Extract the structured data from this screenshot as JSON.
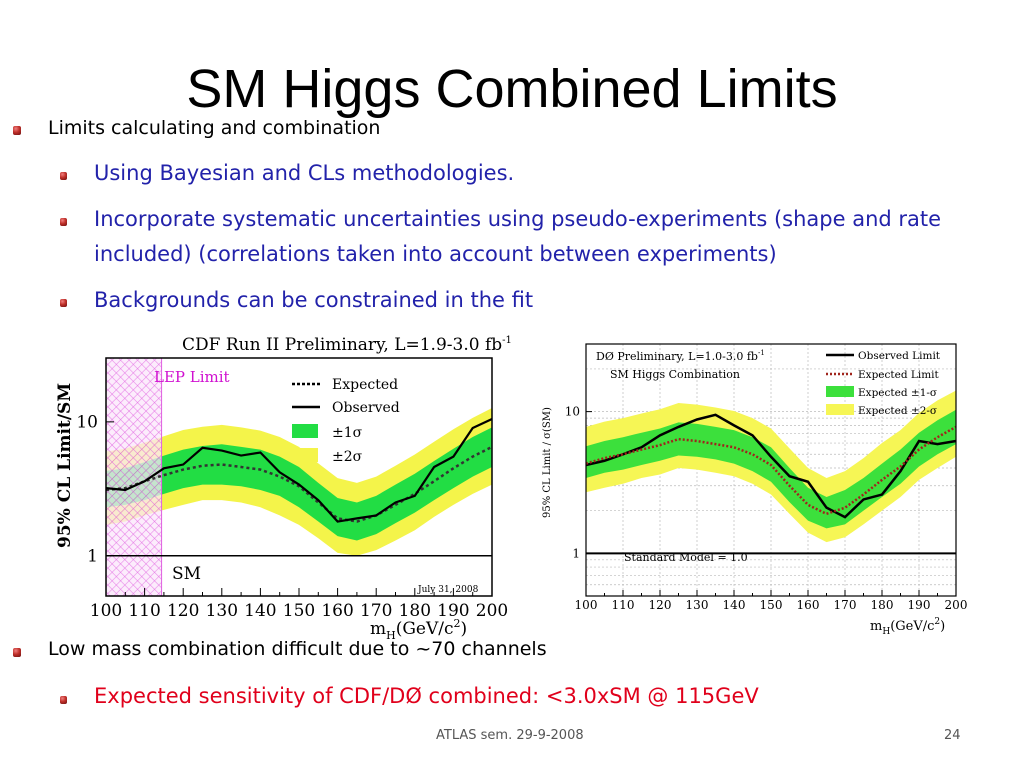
{
  "slide": {
    "title": "SM Higgs Combined Limits",
    "bullets": {
      "b1": "Limits calculating and combination",
      "b1_sub1": "Using Bayesian and CLs methodologies.",
      "b1_sub2_line1": "Incorporate systematic uncertainties using pseudo-experiments (shape and rate",
      "b1_sub2_line2": "included) (correlations taken into account between experiments)",
      "b1_sub3": "Backgrounds can be constrained in the fit",
      "b2": "Low mass combination difficult due to ~70 channels",
      "b2_sub1": "Expected sensitivity of CDF/DØ combined: <3.0xSM @ 115GeV"
    },
    "footer_center": "ATLAS sem. 29-9-2008",
    "page_number": "24"
  },
  "colors": {
    "sub_bullet_blue": "#2222aa",
    "sub_bullet_red": "#e0001b",
    "band_1sigma": "#22dd44",
    "band_2sigma": "#f4f44a",
    "lep_hatch": "#e060e0"
  },
  "chart_data": [
    {
      "type": "line",
      "title": "CDF Run II Preliminary, L=1.9-3.0 fb",
      "title_superscript": "-1",
      "xlabel": "m",
      "xlabel_sub": "H",
      "xlabel_unit": "(GeV/c",
      "xlabel_unit_sup": "2",
      "xlabel_close": ")",
      "ylabel": "95% CL Limit/SM",
      "y_scale": "log",
      "xlim": [
        100,
        200
      ],
      "ylim": [
        0.5,
        30
      ],
      "x_ticks": [
        "100",
        "110",
        "120",
        "130",
        "140",
        "150",
        "160",
        "170",
        "180",
        "190",
        "200"
      ],
      "y_ticks": [
        "1",
        "10"
      ],
      "region_label": "LEP Limit",
      "region_x": [
        100,
        114.4
      ],
      "sm_label": "SM",
      "date_label": "July 31, 2008",
      "legend_position": "top-right",
      "legend": [
        "Expected",
        "Observed",
        "±1σ",
        "±2σ"
      ],
      "x": [
        100,
        105,
        110,
        115,
        120,
        125,
        130,
        135,
        140,
        145,
        150,
        155,
        160,
        165,
        170,
        175,
        180,
        185,
        190,
        195,
        200
      ],
      "series": [
        {
          "name": "Expected",
          "values": [
            3.1,
            3.2,
            3.6,
            4.0,
            4.4,
            4.7,
            4.8,
            4.6,
            4.4,
            3.9,
            3.3,
            2.5,
            1.9,
            1.8,
            2.0,
            2.4,
            2.9,
            3.6,
            4.5,
            5.5,
            6.5
          ]
        },
        {
          "name": "Observed",
          "values": [
            3.2,
            3.1,
            3.6,
            4.5,
            4.8,
            6.4,
            6.1,
            5.6,
            5.9,
            4.2,
            3.4,
            2.6,
            1.8,
            1.9,
            2.0,
            2.5,
            2.8,
            4.6,
            5.5,
            9.0,
            10.5
          ]
        }
      ],
      "band_1sigma": {
        "lower": [
          2.3,
          2.4,
          2.6,
          2.9,
          3.2,
          3.4,
          3.4,
          3.3,
          3.1,
          2.8,
          2.3,
          1.8,
          1.4,
          1.3,
          1.45,
          1.75,
          2.1,
          2.6,
          3.2,
          3.9,
          4.6
        ],
        "upper": [
          4.3,
          4.5,
          5.0,
          5.6,
          6.2,
          6.6,
          6.8,
          6.5,
          6.2,
          5.5,
          4.6,
          3.5,
          2.7,
          2.5,
          2.8,
          3.4,
          4.1,
          5.1,
          6.3,
          7.7,
          9.1
        ]
      },
      "band_2sigma": {
        "lower": [
          1.7,
          1.8,
          2.0,
          2.2,
          2.4,
          2.6,
          2.6,
          2.5,
          2.3,
          2.0,
          1.7,
          1.35,
          1.05,
          1.0,
          1.1,
          1.3,
          1.55,
          1.95,
          2.4,
          2.9,
          3.4
        ],
        "upper": [
          6.0,
          6.3,
          7.0,
          7.8,
          8.7,
          9.2,
          9.5,
          9.1,
          8.6,
          7.7,
          6.5,
          4.9,
          3.8,
          3.5,
          3.9,
          4.7,
          5.7,
          7.1,
          8.8,
          10.7,
          12.7
        ]
      }
    },
    {
      "type": "line",
      "title_line1": "DØ Preliminary, L=1.0-3.0 fb",
      "title_superscript": "-1",
      "title_line2": "SM Higgs Combination",
      "xlabel": "m",
      "xlabel_sub": "H",
      "xlabel_unit": "(GeV/c",
      "xlabel_unit_sup": "2",
      "xlabel_close": ")",
      "ylabel": "95% CL Limit / σ(SM)",
      "y_scale": "log",
      "xlim": [
        100,
        200
      ],
      "ylim": [
        0.5,
        30
      ],
      "x_ticks": [
        "100",
        "110",
        "120",
        "130",
        "140",
        "150",
        "160",
        "170",
        "180",
        "190",
        "200"
      ],
      "y_ticks": [
        "1",
        "10"
      ],
      "sm_label": "Standard Model = 1.0",
      "legend_position": "top-right",
      "legend": [
        "Observed Limit",
        "Expected Limit",
        "Expected ±1-σ",
        "Expected ±2-σ"
      ],
      "x": [
        100,
        105,
        110,
        115,
        120,
        125,
        130,
        135,
        140,
        145,
        150,
        155,
        160,
        165,
        170,
        175,
        180,
        185,
        190,
        195,
        200
      ],
      "series": [
        {
          "name": "Observed Limit",
          "values": [
            4.2,
            4.5,
            5.0,
            5.6,
            6.8,
            7.8,
            8.8,
            9.5,
            8.0,
            6.8,
            4.8,
            3.5,
            3.2,
            2.1,
            1.8,
            2.4,
            2.6,
            3.8,
            6.2,
            5.9,
            6.2
          ]
        },
        {
          "name": "Expected Limit",
          "values": [
            4.3,
            4.7,
            5.0,
            5.4,
            5.8,
            6.4,
            6.2,
            5.9,
            5.6,
            5.0,
            4.2,
            3.0,
            2.2,
            1.9,
            2.1,
            2.6,
            3.3,
            4.1,
            5.4,
            6.6,
            7.8
          ]
        }
      ],
      "band_1sigma": {
        "lower": [
          3.4,
          3.7,
          3.9,
          4.2,
          4.5,
          4.9,
          4.8,
          4.6,
          4.3,
          3.8,
          3.2,
          2.3,
          1.7,
          1.5,
          1.6,
          2.0,
          2.5,
          3.1,
          4.1,
          5.0,
          5.9
        ],
        "upper": [
          5.7,
          6.2,
          6.6,
          7.1,
          7.6,
          8.4,
          8.2,
          7.8,
          7.4,
          6.6,
          5.6,
          4.0,
          2.9,
          2.5,
          2.8,
          3.4,
          4.3,
          5.4,
          7.1,
          8.7,
          10.3
        ]
      },
      "band_2sigma": {
        "lower": [
          2.7,
          2.9,
          3.1,
          3.4,
          3.6,
          4.0,
          3.9,
          3.7,
          3.5,
          3.1,
          2.6,
          1.9,
          1.4,
          1.2,
          1.3,
          1.6,
          2.0,
          2.5,
          3.3,
          4.0,
          4.8
        ],
        "upper": [
          7.8,
          8.5,
          9.0,
          9.7,
          10.4,
          11.5,
          11.2,
          10.7,
          10.1,
          9.0,
          7.6,
          5.5,
          4.0,
          3.4,
          3.8,
          4.7,
          6.0,
          7.4,
          9.8,
          12.0,
          14.1
        ]
      }
    }
  ]
}
